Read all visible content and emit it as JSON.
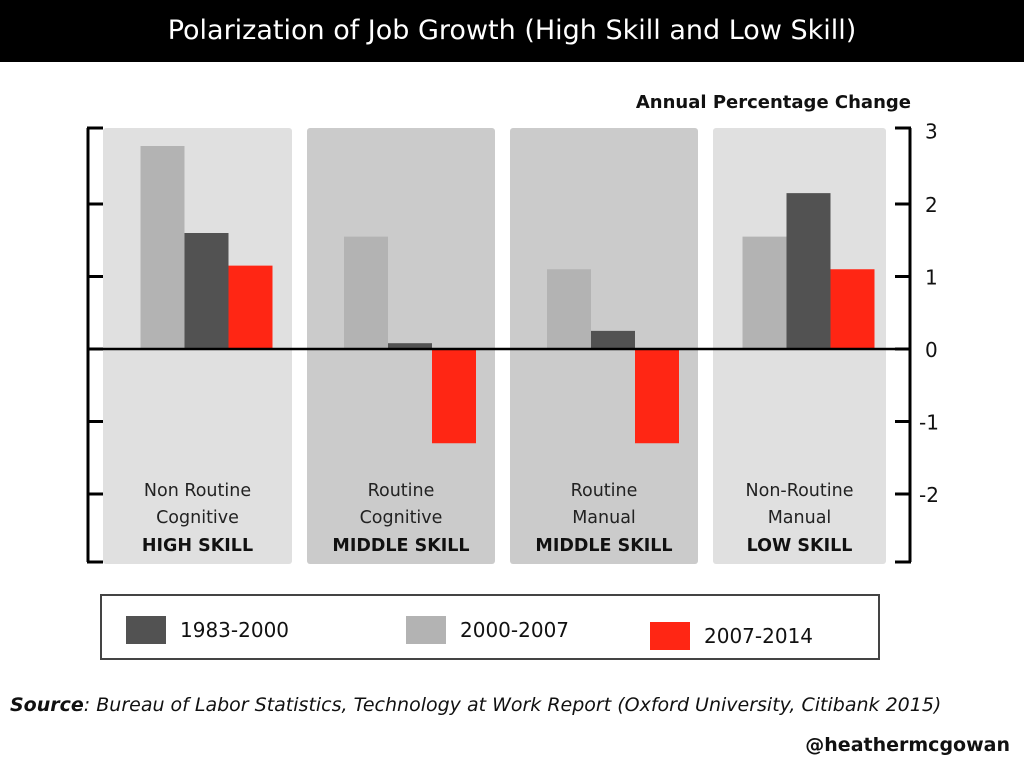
{
  "title": "Polarization of Job Growth (High Skill and Low Skill)",
  "source_label": "Source",
  "source_text": ": Bureau of Labor Statistics, Technology at Work Report (Oxford University, Citibank 2015)",
  "handle": "@heathermcgowan",
  "chart_data": {
    "type": "bar",
    "title": "Polarization of Job Growth (High Skill and Low Skill)",
    "ylabel": "Annual Percentage Change",
    "ylim": [
      -2.9,
      3
    ],
    "yticks": [
      3,
      2,
      1,
      0,
      -1,
      -2
    ],
    "y_axis_side": "right",
    "grid": false,
    "legend_position": "bottom",
    "categories": [
      {
        "line1": "Non Routine",
        "line2": "Cognitive",
        "skill": "HIGH SKILL",
        "panel_color": "#e0e0e0"
      },
      {
        "line1": "Routine",
        "line2": "Cognitive",
        "skill": "MIDDLE SKILL",
        "panel_color": "#cbcbcb"
      },
      {
        "line1": "Routine",
        "line2": "Manual",
        "skill": "MIDDLE SKILL",
        "panel_color": "#cbcbcb"
      },
      {
        "line1": "Non-Routine",
        "line2": "Manual",
        "skill": "LOW SKILL",
        "panel_color": "#e0e0e0"
      }
    ],
    "series": [
      {
        "name": "2000-2007",
        "color": "#b3b3b3",
        "values": [
          2.8,
          1.55,
          1.1,
          1.55
        ]
      },
      {
        "name": "1983-2000",
        "color": "#525252",
        "values": [
          1.6,
          0.08,
          0.25,
          2.15
        ]
      },
      {
        "name": "2007-2014",
        "color": "#ff2614",
        "values": [
          1.15,
          -1.3,
          -1.3,
          1.1
        ]
      }
    ],
    "legend": [
      {
        "name": "1983-2000",
        "color": "#525252"
      },
      {
        "name": "2000-2007",
        "color": "#b3b3b3"
      },
      {
        "name": "2007-2014",
        "color": "#ff2614"
      }
    ]
  }
}
